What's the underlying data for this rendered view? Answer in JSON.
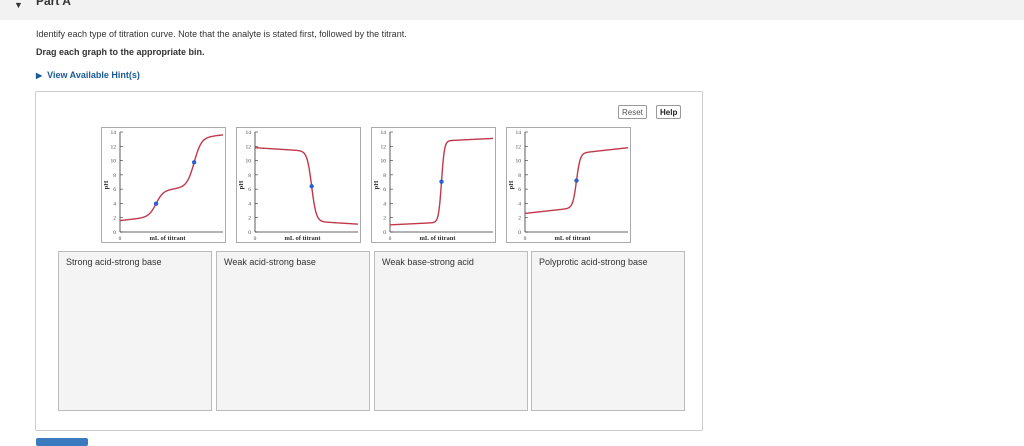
{
  "part": {
    "title": "Part A"
  },
  "instruction": "Identify each type of titration curve. Note that the analyte is stated first, followed by the titrant.",
  "drag_instruction": "Drag each graph to the appropriate bin.",
  "hint_link": "View Available Hint(s)",
  "toolbar": {
    "reset_label": "Reset",
    "help_label": "Help"
  },
  "graph_axes": {
    "xlabel": "mL of titrant",
    "ylabel": "pH",
    "x_tick": "0",
    "y_ticks": [
      "0",
      "2",
      "4",
      "6",
      "8",
      "10",
      "12",
      "14"
    ]
  },
  "graphs": [
    {
      "curve": "polyprotic",
      "equivalence_points": 2
    },
    {
      "curve": "weak-base-strong-acid",
      "equivalence_points": 1
    },
    {
      "curve": "strong-acid-strong-base",
      "equivalence_points": 1
    },
    {
      "curve": "weak-acid-strong-base",
      "equivalence_points": 1
    }
  ],
  "bins": [
    {
      "label": "Strong acid-strong base"
    },
    {
      "label": "Weak acid-strong base"
    },
    {
      "label": "Weak base-strong acid"
    },
    {
      "label": "Polyprotic acid-strong base"
    }
  ],
  "colors": {
    "curve": "#c0384b",
    "point": "#2d5fd1",
    "link": "#1a5a96"
  }
}
